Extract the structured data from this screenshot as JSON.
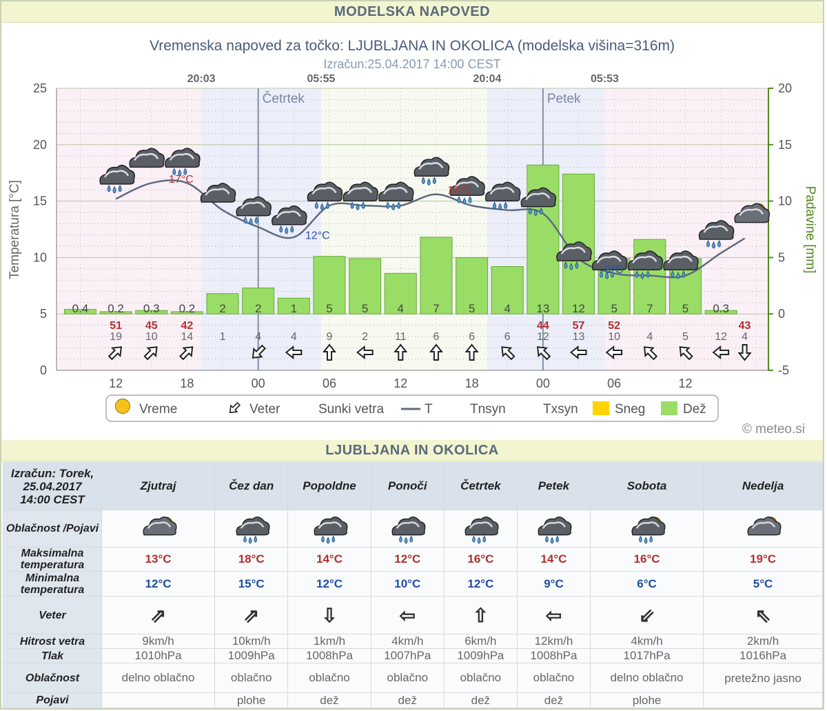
{
  "header_title": "MODELSKA NAPOVED",
  "chart_title": "Vremenska napoved za točko: LJUBLJANA IN OKOLICA (modelska višina=316m)",
  "chart_subtitle": "Izračun:25.04.2017 14:00 CEST",
  "credit": "© meteo.si",
  "colors": {
    "rain": "#99dd66",
    "rain_stroke": "#66aa33",
    "snow": "#ffd400",
    "temp_line": "#5d6a80",
    "axis_right": "#4e8a1e",
    "gust": "#b03030",
    "day_band": "#dde0f5",
    "night_band": "#f5e4ee"
  },
  "chart_data": {
    "type": "bar",
    "title": "Vremenska napoved za točko: LJUBLJANA IN OKOLICA (modelska višina=316m)",
    "ylabel_left": "Temperatura [°C]",
    "ylabel_right": "Padavine [mm]",
    "ylim_left": [
      0,
      25
    ],
    "ylim_right": [
      -5,
      20
    ],
    "yticks_left": [
      "0",
      "5",
      "10",
      "15",
      "20",
      "25"
    ],
    "yticks_right": [
      "-5",
      "0",
      "5",
      "10",
      "15",
      "20"
    ],
    "grid": true,
    "x_tick_labels": [
      {
        "h": 12,
        "label": "12"
      },
      {
        "h": 18,
        "label": "18"
      },
      {
        "h": 24,
        "label": "00"
      },
      {
        "h": 30,
        "label": "06"
      },
      {
        "h": 36,
        "label": "12"
      },
      {
        "h": 42,
        "label": "18"
      },
      {
        "h": 48,
        "label": "00"
      },
      {
        "h": 54,
        "label": "06"
      },
      {
        "h": 60,
        "label": "12"
      }
    ],
    "day_markers": [
      {
        "h": 24,
        "label": "Četrtek"
      },
      {
        "h": 48,
        "label": "Petek"
      }
    ],
    "sun_times": [
      {
        "h": 19.2,
        "label": "20:03"
      },
      {
        "h": 29.3,
        "label": "05:55"
      },
      {
        "h": 43.3,
        "label": "20:04"
      },
      {
        "h": 53.2,
        "label": "05:53"
      }
    ],
    "precip_hours": [
      9,
      12,
      15,
      18,
      21,
      24,
      27,
      30,
      33,
      36,
      39,
      42,
      45,
      48,
      51,
      54,
      57,
      60,
      63
    ],
    "precip_values": [
      0.4,
      0.2,
      0.3,
      0.2,
      1.8,
      2.3,
      1.4,
      5.1,
      4.9,
      3.6,
      6.8,
      5,
      4.2,
      13.2,
      12.4,
      4.9,
      6.6,
      4.9,
      0.3
    ],
    "precip_labels": [
      "0.4",
      "0.2",
      "0.3",
      "0.2",
      "2",
      "2",
      "1",
      "5",
      "5",
      "4",
      "7",
      "5",
      "4",
      "13",
      "12",
      "5",
      "7",
      "5",
      "0.3"
    ],
    "temp_hours": [
      12,
      15,
      18,
      21,
      24,
      27,
      30,
      33,
      36,
      39,
      42,
      45,
      48,
      51,
      54,
      57,
      60,
      63,
      65
    ],
    "temp_values": [
      15.2,
      16.6,
      16.6,
      14.2,
      12.7,
      11.8,
      14.6,
      14.6,
      14.6,
      15.6,
      14.6,
      14.2,
      13.9,
      9.9,
      8.6,
      8.4,
      8.4,
      10.4,
      11.7
    ],
    "annotations": [
      {
        "h": 17.5,
        "y": 17,
        "text": "17°C",
        "kind": "max"
      },
      {
        "h": 29.0,
        "y": 12,
        "text": "12°C",
        "kind": "min"
      },
      {
        "h": 41.0,
        "y": 16,
        "text": "16°C",
        "kind": "max"
      },
      {
        "h": 54.0,
        "y": 9,
        "text": "9°C",
        "kind": "min"
      }
    ],
    "wind_hours": [
      12,
      15,
      18,
      21,
      24,
      27,
      30,
      33,
      36,
      39,
      42,
      45,
      48,
      51,
      54,
      57,
      60,
      63,
      65
    ],
    "wind_speed": [
      "19",
      "10",
      "14",
      "1",
      "4",
      "4",
      "9",
      "2",
      "11",
      "6",
      "6",
      "6",
      "12",
      "13",
      "10",
      "4",
      "5",
      "12",
      "4"
    ],
    "wind_gust": [
      "51",
      "45",
      "42",
      "",
      "",
      "",
      "",
      "",
      "",
      "",
      "",
      "",
      "44",
      "57",
      "52",
      "",
      "",
      "",
      "43"
    ],
    "wind_dir": [
      "ne",
      "ne",
      "ne",
      "",
      "sw",
      "w",
      "n",
      "w",
      "n",
      "n",
      "n",
      "nw",
      "nw",
      "w",
      "w",
      "nw",
      "nw",
      "w",
      "s"
    ],
    "weather_icons": [
      {
        "h": 12,
        "t": 17,
        "icon": "rain"
      },
      {
        "h": 14.5,
        "t": 18.5,
        "icon": "cloud"
      },
      {
        "h": 17.5,
        "t": 18.5,
        "icon": "rain"
      },
      {
        "h": 20.5,
        "t": 15.4,
        "icon": "cloud"
      },
      {
        "h": 23.5,
        "t": 14.2,
        "icon": "rain"
      },
      {
        "h": 26.5,
        "t": 13.4,
        "icon": "rain"
      },
      {
        "h": 29.5,
        "t": 15.5,
        "icon": "rain"
      },
      {
        "h": 32.5,
        "t": 15.5,
        "icon": "rain"
      },
      {
        "h": 35.5,
        "t": 15.5,
        "icon": "rain"
      },
      {
        "h": 38.5,
        "t": 17.7,
        "icon": "rain"
      },
      {
        "h": 41.5,
        "t": 16.0,
        "icon": "rain"
      },
      {
        "h": 44.5,
        "t": 15.5,
        "icon": "rain"
      },
      {
        "h": 47.5,
        "t": 15.0,
        "icon": "rain"
      },
      {
        "h": 50.5,
        "t": 10.2,
        "icon": "rain"
      },
      {
        "h": 53.5,
        "t": 9.4,
        "icon": "rain"
      },
      {
        "h": 56.5,
        "t": 9.4,
        "icon": "rain"
      },
      {
        "h": 59.5,
        "t": 9.4,
        "icon": "rain"
      },
      {
        "h": 62.5,
        "t": 12.1,
        "icon": "rain"
      },
      {
        "h": 65.5,
        "t": 13.6,
        "icon": "suncloud"
      }
    ],
    "legend": [
      "Vreme",
      "Veter",
      "Sunki vetra",
      "T",
      "Tnsyn",
      "Txsyn",
      "Sneg",
      "Dež"
    ]
  },
  "table": {
    "title": "LJUBLJANA IN OKOLICA",
    "corner": [
      "Izračun: Torek,",
      "25.04.2017",
      "14:00 CEST"
    ],
    "columns": [
      "Zjutraj",
      "Čez dan",
      "Popoldne",
      "Ponoči",
      "Četrtek",
      "Petek",
      "Sobota",
      "Nedelja"
    ],
    "row_labels": {
      "icons": "Oblačnost /Pojavi",
      "tmax": [
        "Maksimalna",
        "temperatura"
      ],
      "tmin": [
        "Minimalna",
        "temperatura"
      ],
      "wind": "Veter",
      "speed": "Hitrost vetra",
      "pressure": "Tlak",
      "cloud": "Oblačnost",
      "phenomena": "Pojavi"
    },
    "icons": [
      "suncloud",
      "rain",
      "rain",
      "rain",
      "rain",
      "rain",
      "sunrain",
      "suncloud"
    ],
    "tmax": [
      "13°C",
      "18°C",
      "14°C",
      "12°C",
      "16°C",
      "14°C",
      "16°C",
      "19°C"
    ],
    "tmin": [
      "12°C",
      "15°C",
      "12°C",
      "10°C",
      "12°C",
      "9°C",
      "6°C",
      "5°C"
    ],
    "wind": [
      "⇗",
      "⇗",
      "⇩",
      "⇦",
      "⇧",
      "⇦",
      "⇙",
      "⇖"
    ],
    "speed": [
      "9km/h",
      "10km/h",
      "1km/h",
      "4km/h",
      "6km/h",
      "12km/h",
      "4km/h",
      "2km/h"
    ],
    "pressure": [
      "1010hPa",
      "1009hPa",
      "1008hPa",
      "1007hPa",
      "1009hPa",
      "1008hPa",
      "1017hPa",
      "1016hPa"
    ],
    "cloud": [
      "delno oblačno",
      "oblačno",
      "oblačno",
      "oblačno",
      "oblačno",
      "oblačno",
      "delno oblačno",
      "pretežno jasno"
    ],
    "phenomena": [
      "",
      "plohe",
      "dež",
      "dež",
      "dež",
      "dež",
      "plohe",
      ""
    ]
  }
}
